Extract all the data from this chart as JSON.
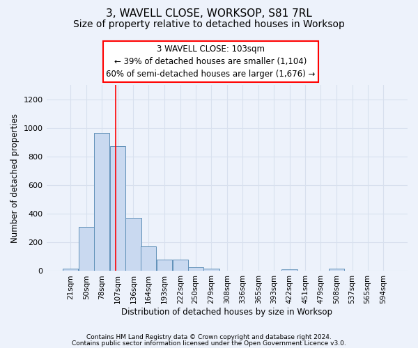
{
  "title": "3, WAVELL CLOSE, WORKSOP, S81 7RL",
  "subtitle": "Size of property relative to detached houses in Worksop",
  "xlabel": "Distribution of detached houses by size in Worksop",
  "ylabel": "Number of detached properties",
  "footnote1": "Contains HM Land Registry data © Crown copyright and database right 2024.",
  "footnote2": "Contains public sector information licensed under the Open Government Licence v3.0.",
  "annotation_line1": "3 WAVELL CLOSE: 103sqm",
  "annotation_line2": "← 39% of detached houses are smaller (1,104)",
  "annotation_line3": "60% of semi-detached houses are larger (1,676) →",
  "bar_color": "#c9d9f0",
  "bar_edge_color": "#6090b8",
  "red_line_x": 103,
  "categories": [
    21,
    50,
    78,
    107,
    136,
    164,
    193,
    222,
    250,
    279,
    308,
    336,
    365,
    393,
    422,
    451,
    479,
    508,
    537,
    565,
    594
  ],
  "bin_width": 29,
  "values": [
    15,
    310,
    965,
    875,
    370,
    175,
    80,
    80,
    25,
    15,
    0,
    0,
    0,
    0,
    10,
    0,
    0,
    15,
    0,
    0,
    0
  ],
  "ylim": [
    0,
    1300
  ],
  "yticks": [
    0,
    200,
    400,
    600,
    800,
    1000,
    1200
  ],
  "background_color": "#edf2fb",
  "grid_color": "#d8e0ee",
  "title_fontsize": 11,
  "subtitle_fontsize": 10,
  "label_fontsize": 8.5,
  "tick_fontsize": 7.5,
  "annot_fontsize": 8.5
}
